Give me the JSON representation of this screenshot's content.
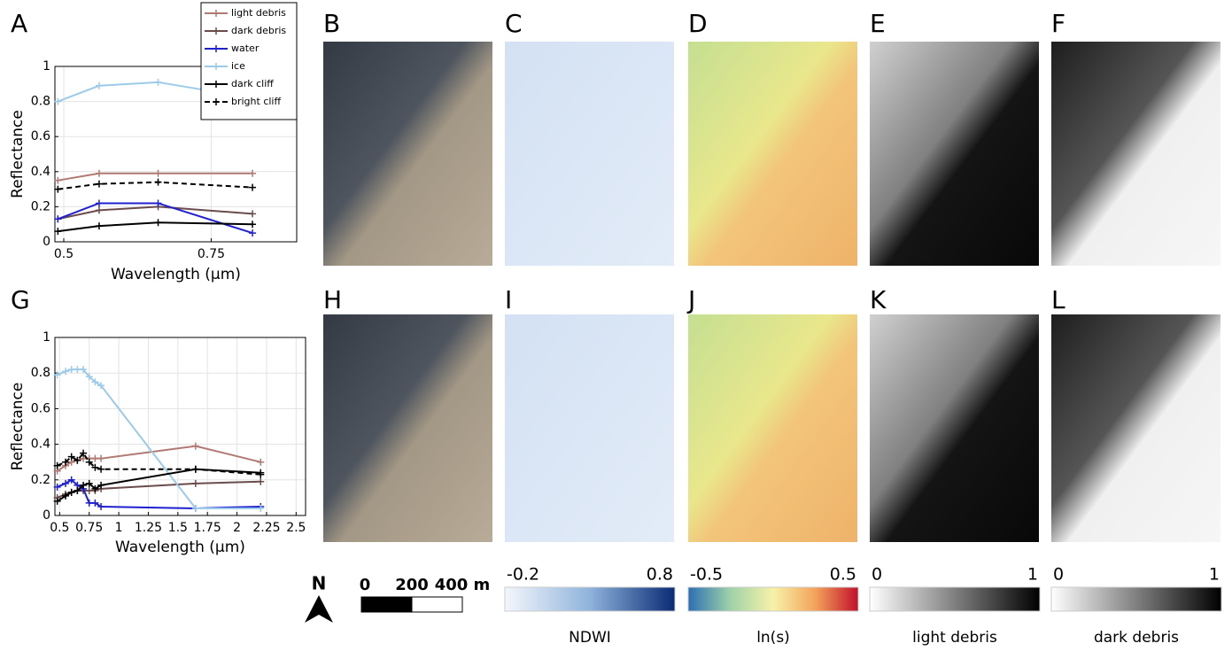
{
  "chart_data": [
    {
      "type": "line",
      "panel_label": "A",
      "xlabel": "Wavelength (μm)",
      "ylabel": "Reflectance",
      "x": [
        0.49,
        0.56,
        0.66,
        0.82
      ],
      "xlim": [
        0.485,
        0.895
      ],
      "xticks": [
        0.5,
        0.75
      ],
      "ylim": [
        0,
        1
      ],
      "yticks": [
        0,
        0.2,
        0.4,
        0.6,
        0.8,
        1
      ],
      "grid": true,
      "legend": "upper right",
      "series": [
        {
          "name": "light debris",
          "color": "#b07a73",
          "dashed": false,
          "values": [
            0.35,
            0.39,
            0.39,
            0.39
          ]
        },
        {
          "name": "dark debris",
          "color": "#6b4c4c",
          "dashed": false,
          "values": [
            0.13,
            0.18,
            0.2,
            0.16
          ]
        },
        {
          "name": "water",
          "color": "#2020d0",
          "dashed": false,
          "values": [
            0.13,
            0.22,
            0.22,
            0.05
          ]
        },
        {
          "name": "ice",
          "color": "#9ccbea",
          "dashed": false,
          "values": [
            0.8,
            0.89,
            0.91,
            0.82
          ]
        },
        {
          "name": "dark cliff",
          "color": "#000000",
          "dashed": false,
          "values": [
            0.06,
            0.09,
            0.11,
            0.1
          ]
        },
        {
          "name": "bright cliff",
          "color": "#000000",
          "dashed": true,
          "values": [
            0.3,
            0.33,
            0.34,
            0.31
          ]
        }
      ]
    },
    {
      "type": "line",
      "panel_label": "G",
      "xlabel": "Wavelength (μm)",
      "ylabel": "Reflectance",
      "x": [
        0.48,
        0.55,
        0.6,
        0.65,
        0.7,
        0.75,
        0.8,
        0.85,
        1.65,
        2.2
      ],
      "xlim": [
        0.46,
        2.58
      ],
      "xticks": [
        0.5,
        0.75,
        1,
        1.25,
        1.5,
        1.75,
        2,
        2.25,
        2.5
      ],
      "ylim": [
        0,
        1
      ],
      "yticks": [
        0,
        0.2,
        0.4,
        0.6,
        0.8,
        1
      ],
      "grid": true,
      "legend": "none",
      "series": [
        {
          "name": "light debris",
          "color": "#b07a73",
          "dashed": false,
          "values": [
            0.25,
            0.28,
            0.3,
            0.31,
            0.32,
            0.32,
            0.32,
            0.32,
            0.39,
            0.3
          ]
        },
        {
          "name": "dark debris",
          "color": "#6b4c4c",
          "dashed": false,
          "values": [
            0.1,
            0.12,
            0.13,
            0.14,
            0.14,
            0.14,
            0.14,
            0.15,
            0.18,
            0.19
          ]
        },
        {
          "name": "water",
          "color": "#2020d0",
          "dashed": false,
          "values": [
            0.16,
            0.18,
            0.2,
            0.17,
            0.15,
            0.07,
            0.07,
            0.05,
            0.04,
            0.05
          ]
        },
        {
          "name": "ice",
          "color": "#9ccbea",
          "dashed": false,
          "values": [
            0.79,
            0.81,
            0.82,
            0.82,
            0.82,
            0.78,
            0.75,
            0.73,
            0.04,
            0.04
          ]
        },
        {
          "name": "dark cliff",
          "color": "#000000",
          "dashed": false,
          "values": [
            0.08,
            0.11,
            0.13,
            0.14,
            0.17,
            0.18,
            0.15,
            0.17,
            0.26,
            0.24
          ]
        },
        {
          "name": "bright cliff",
          "color": "#000000",
          "dashed": true,
          "values": [
            0.28,
            0.3,
            0.33,
            0.31,
            0.35,
            0.3,
            0.27,
            0.26,
            0.26,
            0.23
          ]
        }
      ]
    }
  ],
  "image_panels": [
    {
      "label": "B"
    },
    {
      "label": "C"
    },
    {
      "label": "D"
    },
    {
      "label": "E"
    },
    {
      "label": "F"
    },
    {
      "label": "H"
    },
    {
      "label": "I"
    },
    {
      "label": "J"
    },
    {
      "label": "K"
    },
    {
      "label": "L"
    }
  ],
  "north": "N",
  "scale_bar": {
    "labels": [
      "0",
      "200",
      "400 m"
    ]
  },
  "colorbars": [
    {
      "title": "NDWI",
      "min": -0.2,
      "max": 0.8,
      "colors": [
        "#f4f7fc",
        "#8fb3dc",
        "#0a2a74"
      ]
    },
    {
      "title": "ln(s)",
      "min": -0.5,
      "max": 0.5,
      "colors": [
        "#2c6fb3",
        "#9fd2a8",
        "#f7f2a8",
        "#f4a25a",
        "#c0102a"
      ]
    },
    {
      "title": "light debris",
      "min": 0,
      "max": 1,
      "colors": [
        "#ffffff",
        "#000000"
      ]
    },
    {
      "title": "dark debris",
      "min": 0,
      "max": 1,
      "colors": [
        "#ffffff",
        "#000000"
      ]
    }
  ]
}
